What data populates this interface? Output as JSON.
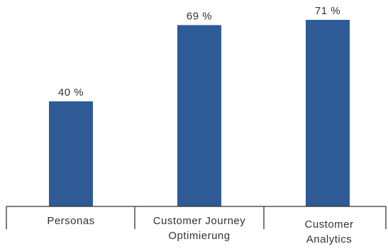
{
  "chart_data": {
    "type": "bar",
    "categories": [
      [
        "Personas"
      ],
      [
        "Customer Journey",
        "Optimierung"
      ],
      [
        "Customer",
        "Analytics"
      ]
    ],
    "values": [
      40,
      69,
      71
    ],
    "value_labels": [
      "40 %",
      "69 %",
      "71 %"
    ],
    "unit": "%",
    "title": "",
    "xlabel": "",
    "ylabel": "",
    "ylim": [
      0,
      80
    ],
    "grid": false,
    "legend": "none",
    "bar_color": "#2e5b96"
  }
}
